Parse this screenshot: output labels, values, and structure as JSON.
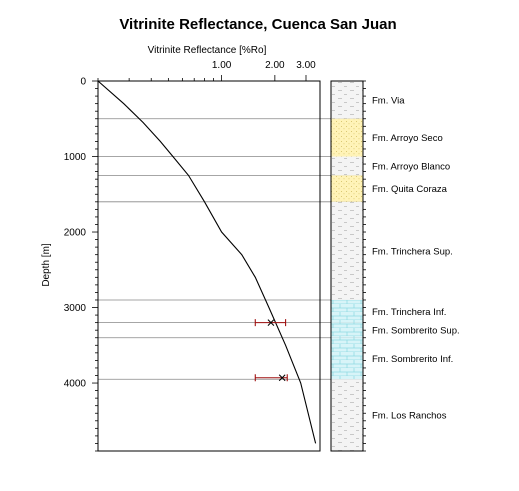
{
  "chart_data": {
    "type": "line",
    "title": "Vitrinite Reflectance, Cuenca San Juan",
    "xlabel": "Vitrinite Reflectance [%Ro]",
    "ylabel": "Depth [m]",
    "x_scale": "log",
    "x_ticks": [
      "1.00",
      "2.00",
      "3.00"
    ],
    "x_tick_values": [
      1.0,
      2.0,
      3.0
    ],
    "xlim": [
      0.2,
      3.6
    ],
    "y_ticks": [
      "0",
      "1000",
      "2000",
      "3000",
      "4000"
    ],
    "y_tick_values": [
      0,
      1000,
      2000,
      3000,
      4000
    ],
    "ylim": [
      0,
      4900
    ],
    "series": [
      {
        "x": [
          0.2,
          0.28,
          0.36,
          0.45,
          0.53,
          0.65,
          0.8,
          1.0,
          1.3,
          1.55,
          1.85,
          2.3,
          2.8,
          3.4
        ],
        "y": [
          0,
          300,
          550,
          800,
          1000,
          1250,
          1600,
          2000,
          2300,
          2600,
          3000,
          3500,
          4000,
          4800
        ]
      }
    ],
    "measurements": [
      {
        "x": 1.9,
        "x_low": 1.55,
        "x_high": 2.3,
        "y": 3200
      },
      {
        "x": 2.2,
        "x_low": 1.55,
        "x_high": 2.35,
        "y": 3930
      }
    ],
    "boundaries": [
      500,
      1000,
      1250,
      1600,
      2900,
      3200,
      3400,
      3950
    ],
    "column_fills": {
      "shale": "#f4f4f4",
      "sandstone": "#fff3b8",
      "limestone": "#d8f4f8",
      "hatch": "#8ad8e0"
    },
    "colors": {
      "line": "#000000",
      "measurement": "#a01010",
      "grid": "#888888"
    },
    "formations": [
      {
        "name": "Fm. Via",
        "top": 0,
        "bottom": 500,
        "lith": "shale"
      },
      {
        "name": "Fm. Arroyo Seco",
        "top": 500,
        "bottom": 1000,
        "lith": "sandstone"
      },
      {
        "name": "Fm. Arroyo Blanco",
        "top": 1000,
        "bottom": 1250,
        "lith": "shale"
      },
      {
        "name": "Fm. Quita Coraza",
        "top": 1250,
        "bottom": 1600,
        "lith": "sandstone"
      },
      {
        "name": "Fm. Trinchera Sup.",
        "top": 1600,
        "bottom": 2900,
        "lith": "shale"
      },
      {
        "name": "Fm. Trinchera Inf.",
        "top": 2900,
        "bottom": 3200,
        "lith": "limestone"
      },
      {
        "name": "Fm. Sombrerito Sup.",
        "top": 3200,
        "bottom": 3400,
        "lith": "limestone"
      },
      {
        "name": "Fm. Sombrerito Inf.",
        "top": 3400,
        "bottom": 3950,
        "lith": "limestone"
      },
      {
        "name": "Fm. Los Ranchos",
        "top": 3950,
        "bottom": 4900,
        "lith": "shale"
      }
    ]
  }
}
